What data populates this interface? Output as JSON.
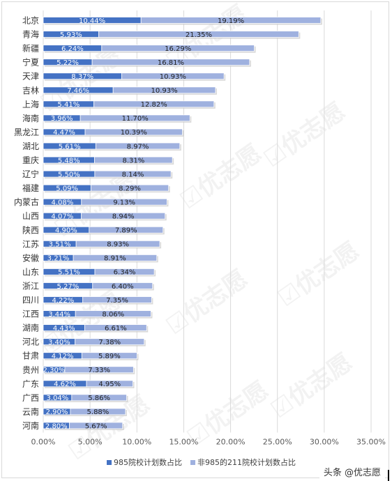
{
  "chart_data": {
    "type": "bar",
    "orientation": "horizontal",
    "stacked": true,
    "categories": [
      "北京",
      "青海",
      "新疆",
      "宁夏",
      "天津",
      "吉林",
      "上海",
      "海南",
      "黑龙江",
      "湖北",
      "重庆",
      "辽宁",
      "福建",
      "内蒙古",
      "山西",
      "陕西",
      "江苏",
      "安徽",
      "山东",
      "浙江",
      "四川",
      "江西",
      "湖南",
      "河北",
      "甘肃",
      "贵州",
      "广东",
      "广西",
      "云南",
      "河南"
    ],
    "series": [
      {
        "name": "985院校计划数占比",
        "color": "#4472c4",
        "values": [
          10.44,
          5.93,
          6.24,
          5.22,
          8.37,
          7.46,
          5.41,
          3.96,
          4.47,
          5.61,
          5.48,
          5.5,
          5.09,
          4.08,
          4.07,
          4.9,
          3.51,
          3.21,
          5.51,
          5.27,
          4.22,
          3.44,
          4.43,
          3.4,
          4.12,
          2.3,
          4.62,
          3.04,
          2.9,
          2.8
        ],
        "labels": [
          "10.44%",
          "5.93%",
          "6.24%",
          "5.22%",
          "8.37%",
          "7.46%",
          "5.41%",
          "3.96%",
          "4.47%",
          "5.61%",
          "5.48%",
          "5.50%",
          "5.09%",
          "4.08%",
          "4.07%",
          "4.90%",
          "3.51%",
          "3.21%",
          "5.51%",
          "5.27%",
          "4.22%",
          "3.44%",
          "4.43%",
          "3.40%",
          "4.12%",
          "2.30%",
          "4.62%",
          "3.04%",
          "2.90%",
          "2.80%"
        ]
      },
      {
        "name": "非985的211院校计划数占比",
        "color": "#9fb1df",
        "values": [
          19.19,
          21.35,
          16.29,
          16.81,
          10.93,
          10.93,
          12.82,
          11.7,
          10.39,
          8.97,
          8.31,
          8.14,
          8.29,
          9.13,
          8.94,
          7.89,
          8.93,
          8.91,
          6.34,
          6.4,
          7.35,
          8.06,
          6.61,
          7.38,
          5.89,
          7.33,
          4.95,
          5.86,
          5.88,
          5.67
        ],
        "labels": [
          "19.19%",
          "21.35%",
          "16.29%",
          "16.81%",
          "10.93%",
          "10.93%",
          "12.82%",
          "11.70%",
          "10.39%",
          "8.97%",
          "8.31%",
          "8.14%",
          "8.29%",
          "9.13%",
          "8.94%",
          "7.89%",
          "8.93%",
          "8.91%",
          "6.34%",
          "6.40%",
          "7.35%",
          "8.06%",
          "6.61%",
          "7.38%",
          "5.89%",
          "7.33%",
          "4.95%",
          "5.86%",
          "5.88%",
          "5.67%"
        ]
      }
    ],
    "xlim": [
      0,
      35
    ],
    "xticks": [
      0,
      5,
      10,
      15,
      20,
      25,
      30,
      35
    ],
    "xtick_labels": [
      "0.00%",
      "5.00%",
      "10.00%",
      "15.00%",
      "20.00%",
      "25.00%",
      "30.00%",
      "35.00%"
    ],
    "grid": true,
    "legend_position": "bottom",
    "watermark": "优志愿"
  },
  "attribution": "头条 @优志愿"
}
